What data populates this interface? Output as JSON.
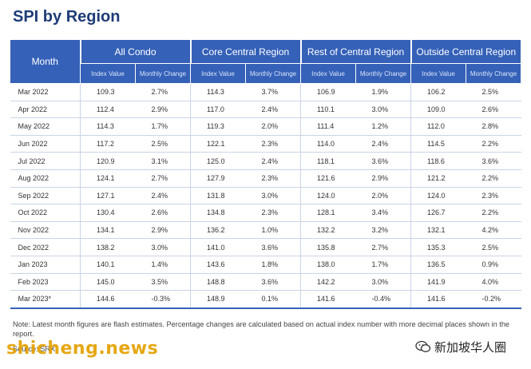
{
  "title": "SPI by Region",
  "table": {
    "month_header": "Month",
    "groups": [
      "All Condo",
      "Core Central Region",
      "Rest of Central Region",
      "Outside Central Region"
    ],
    "sub_value": "Index Value",
    "sub_change": "Monthly Change",
    "rows": [
      {
        "month": "Mar 2022",
        "cells": [
          "109.3",
          "2.7%",
          "114.3",
          "3.7%",
          "106.9",
          "1.9%",
          "106.2",
          "2.5%"
        ]
      },
      {
        "month": "Apr 2022",
        "cells": [
          "112.4",
          "2.9%",
          "117.0",
          "2.4%",
          "110.1",
          "3.0%",
          "109.0",
          "2.6%"
        ]
      },
      {
        "month": "May 2022",
        "cells": [
          "114.3",
          "1.7%",
          "119.3",
          "2.0%",
          "111.4",
          "1.2%",
          "112.0",
          "2.8%"
        ]
      },
      {
        "month": "Jun 2022",
        "cells": [
          "117.2",
          "2.5%",
          "122.1",
          "2.3%",
          "114.0",
          "2.4%",
          "114.5",
          "2.2%"
        ]
      },
      {
        "month": "Jul 2022",
        "cells": [
          "120.9",
          "3.1%",
          "125.0",
          "2.4%",
          "118.1",
          "3.6%",
          "118.6",
          "3.6%"
        ]
      },
      {
        "month": "Aug 2022",
        "cells": [
          "124.1",
          "2.7%",
          "127.9",
          "2.3%",
          "121.6",
          "2.9%",
          "121.2",
          "2.2%"
        ]
      },
      {
        "month": "Sep 2022",
        "cells": [
          "127.1",
          "2.4%",
          "131.8",
          "3.0%",
          "124.0",
          "2.0%",
          "124.0",
          "2.3%"
        ]
      },
      {
        "month": "Oct 2022",
        "cells": [
          "130.4",
          "2.6%",
          "134.8",
          "2.3%",
          "128.1",
          "3.4%",
          "126.7",
          "2.2%"
        ]
      },
      {
        "month": "Nov 2022",
        "cells": [
          "134.1",
          "2.9%",
          "136.2",
          "1.0%",
          "132.2",
          "3.2%",
          "132.1",
          "4.2%"
        ]
      },
      {
        "month": "Dec 2022",
        "cells": [
          "138.2",
          "3.0%",
          "141.0",
          "3.6%",
          "135.8",
          "2.7%",
          "135.3",
          "2.5%"
        ]
      },
      {
        "month": "Jan 2023",
        "cells": [
          "140.1",
          "1.4%",
          "143.6",
          "1.8%",
          "138.0",
          "1.7%",
          "136.5",
          "0.9%"
        ]
      },
      {
        "month": "Feb 2023",
        "cells": [
          "145.0",
          "3.5%",
          "148.8",
          "3.6%",
          "142.2",
          "3.0%",
          "141.9",
          "4.0%"
        ]
      },
      {
        "month": "Mar 2023*",
        "cells": [
          "144.6",
          "-0.3%",
          "148.9",
          "0.1%",
          "141.6",
          "-0.4%",
          "141.6",
          "-0.2%"
        ]
      }
    ]
  },
  "note": "Note: Latest month figures are flash estimates. Percentage changes are calculated based on actual index number with more decimal places shown in the report.",
  "source": "Source: SRX",
  "watermark_left": "shicheng.news",
  "watermark_right": "新加坡华人圈",
  "colors": {
    "header_bg": "#3561b8",
    "title": "#1e3c78",
    "row_line": "#c9d4e8"
  },
  "icons": [
    "wechat-icon"
  ]
}
